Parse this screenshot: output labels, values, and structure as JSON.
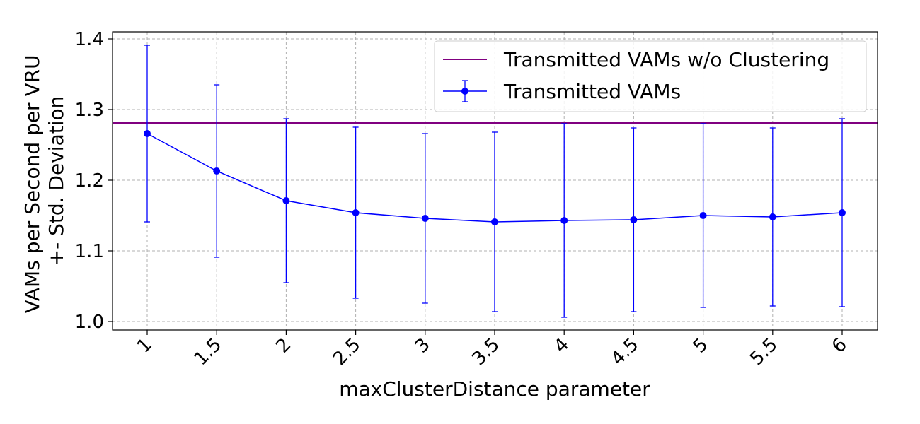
{
  "chart_data": {
    "type": "line",
    "title": "",
    "xlabel": "maxClusterDistance parameter",
    "ylabel_lines": [
      "VAMs per Second per VRU",
      "+- Std. Deviation"
    ],
    "categories": [
      "1",
      "1.5",
      "2",
      "2.5",
      "3",
      "3.5",
      "4",
      "4.5",
      "5",
      "5.5",
      "6"
    ],
    "ylim": [
      0.988,
      1.41
    ],
    "yticks": [
      1.0,
      1.1,
      1.2,
      1.3,
      1.4
    ],
    "ytick_labels": [
      "1.0",
      "1.1",
      "1.2",
      "1.3",
      "1.4"
    ],
    "grid": true,
    "legend_position": "top-right",
    "series": [
      {
        "name": "Transmitted VAMs w/o Clustering",
        "kind": "hline",
        "value": 1.281,
        "color": "#800080"
      },
      {
        "name": "Transmitted VAMs",
        "kind": "errorbar",
        "color": "#0000ff",
        "values": [
          1.266,
          1.213,
          1.171,
          1.154,
          1.146,
          1.141,
          1.143,
          1.144,
          1.15,
          1.148,
          1.154
        ],
        "errors": [
          0.125,
          0.122,
          0.116,
          0.121,
          0.12,
          0.127,
          0.137,
          0.13,
          0.13,
          0.126,
          0.133
        ]
      }
    ]
  }
}
